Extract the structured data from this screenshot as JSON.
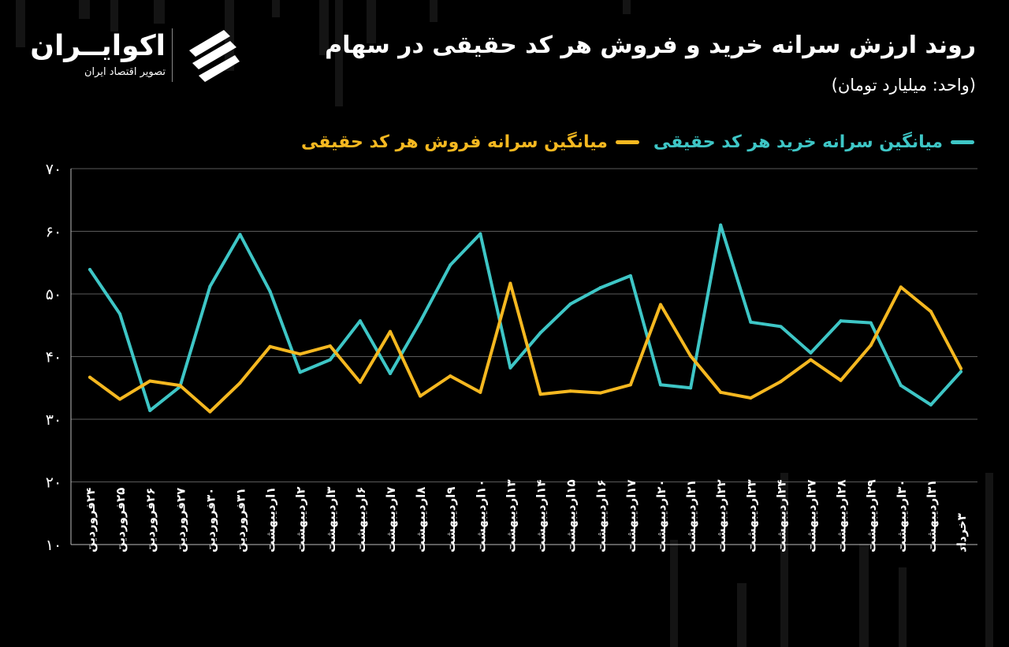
{
  "header": {
    "title": "روند ارزش سرانه خرید و فروش هر کد حقیقی در سهام",
    "unit": "(واحد: میلیارد تومان)"
  },
  "logo": {
    "name": "اکوایــران",
    "subtitle": "تصویر اقتصاد ایران"
  },
  "colors": {
    "buy": "#3EC6C6",
    "sell": "#F5B820",
    "grid": "#5a5a5a",
    "background": "#000000"
  },
  "chart_data": {
    "type": "line",
    "ylim": [
      10,
      70
    ],
    "yticks": [
      "۱۰",
      "۲۰",
      "۳۰",
      "۴۰",
      "۵۰",
      "۶۰",
      "۷۰"
    ],
    "grid": true,
    "legend_position": "top-right",
    "categories": [
      "۲۴فروردین",
      "۲۵فروردین",
      "۲۶فروردین",
      "۲۷فروردین",
      "۳۰فروردین",
      "۳۱فروردین",
      "۱اردیبهشت",
      "۲اردیبهشت",
      "۳اردیبهشت",
      "۶اردیبهشت",
      "۷اردیبهشت",
      "۸اردیبهشت",
      "۹اردیبهشت",
      "۱۰اردیبهشت",
      "۱۳اردیبهشت",
      "۱۴اردیبهشت",
      "۱۵اردیبهشت",
      "۱۶اردیبهشت",
      "۱۷اردیبهشت",
      "۲۰اردیبهشت",
      "۲۱اردیبهشت",
      "۲۲اردیبهشت",
      "۲۳اردیبهشت",
      "۲۴اردیبهشت",
      "۲۷اردیبهشت",
      "۲۸اردیبهشت",
      "۲۹اردیبهشت",
      "۳۰اردیبهشت",
      "۳۱اردیبهشت",
      "۳خرداد"
    ],
    "series": [
      {
        "name": "میانگین سرانه خرید هر کد حقیقی",
        "color": "#3EC6C6",
        "values": [
          53.9,
          46.8,
          31.4,
          35.2,
          51.2,
          59.5,
          50.4,
          37.5,
          39.5,
          45.7,
          37.3,
          45.6,
          54.6,
          59.6,
          38.2,
          43.8,
          48.4,
          51.0,
          52.9,
          35.5,
          35.0,
          61.0,
          45.5,
          44.8,
          40.6,
          45.7,
          45.4,
          35.4,
          32.3,
          37.6
        ]
      },
      {
        "name": "میانگین سرانه فروش هر کد حقیقی",
        "color": "#F5B820",
        "values": [
          36.7,
          33.2,
          36.1,
          35.4,
          31.2,
          35.8,
          41.6,
          40.4,
          41.7,
          35.9,
          44.0,
          33.7,
          36.9,
          34.3,
          51.7,
          34.0,
          34.5,
          34.2,
          35.5,
          48.3,
          40.1,
          34.3,
          33.4,
          36.0,
          39.5,
          36.2,
          41.8,
          51.1,
          47.2,
          38.1
        ]
      }
    ]
  }
}
